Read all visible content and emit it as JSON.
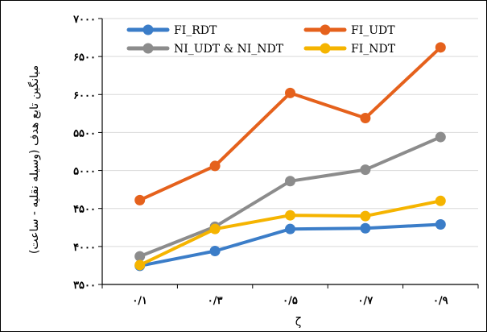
{
  "chart_data": {
    "type": "line",
    "x": [
      "۰/۱",
      "۰/۳",
      "۰/۵",
      "۰/۷",
      "۰/۹"
    ],
    "xlabel": "ζ",
    "ylabel": "میانگین تابع هدف (وسیله نقلیه - ساعت)",
    "ylim": [
      3500,
      7000
    ],
    "ytick_values": [
      3500,
      4000,
      4500,
      5000,
      5500,
      6000,
      6500,
      7000
    ],
    "ytick_labels": [
      "۳۵۰۰",
      "۴۰۰۰",
      "۴۵۰۰",
      "۵۰۰۰",
      "۵۵۰۰",
      "۶۰۰۰",
      "۶۵۰۰",
      "۷۰۰۰"
    ],
    "grid": true,
    "legend_position": "top",
    "series": [
      {
        "name": "FI_RDT",
        "color": "#3b7dc8",
        "values": [
          3745,
          3940,
          4230,
          4240,
          4290
        ]
      },
      {
        "name": "FI_UDT",
        "color": "#e5611c",
        "values": [
          4610,
          5060,
          6020,
          5690,
          6620
        ]
      },
      {
        "name": "NI_UDT & NI_NDT",
        "color": "#8c8c8c",
        "values": [
          3870,
          4260,
          4860,
          5010,
          5440
        ]
      },
      {
        "name": "FI_NDT",
        "color": "#f5b400",
        "values": [
          3755,
          4230,
          4410,
          4400,
          4600
        ]
      }
    ]
  }
}
